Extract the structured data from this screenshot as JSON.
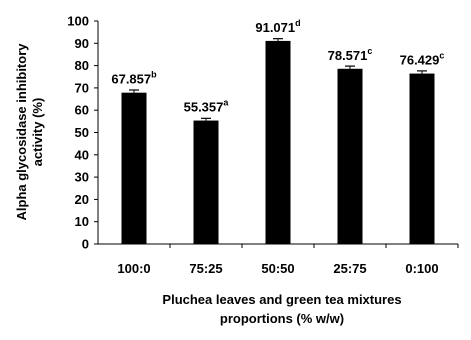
{
  "chart_data": {
    "type": "bar",
    "categories": [
      "100:0",
      "75:25",
      "50:50",
      "25:75",
      "0:100"
    ],
    "values": [
      67.857,
      55.357,
      91.071,
      78.571,
      76.429
    ],
    "errors": [
      1.2,
      1.0,
      1.0,
      1.2,
      1.2
    ],
    "value_labels": [
      "67.857",
      "55.357",
      "91.071",
      "78.571",
      "76.429"
    ],
    "superscripts": [
      "b",
      "a",
      "d",
      "c",
      "c"
    ],
    "bar_color": "#000000",
    "ylim": [
      0,
      100
    ],
    "yticks": [
      0,
      10,
      20,
      30,
      40,
      50,
      60,
      70,
      80,
      90,
      100
    ],
    "ylabel_line1": "Alpha glycosidase inhibitory",
    "ylabel_line2": "activity (%)",
    "xlabel_line1": "Pluchea leaves and green tea mixtures",
    "xlabel_line2": "proportions (% w/w)",
    "grid": false
  }
}
